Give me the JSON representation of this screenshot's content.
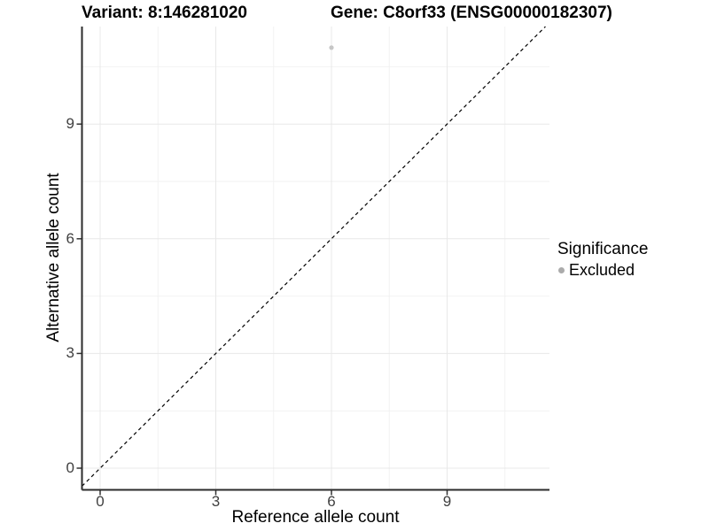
{
  "plot": {
    "left_title": "Variant: 8:146281020",
    "right_title": "Gene: C8orf33 (ENSG00000182307)",
    "x_axis_title": "Reference allele count",
    "y_axis_title": "Alternative allele count",
    "legend": {
      "title": "Significance",
      "items": [
        {
          "label": "Excluded",
          "color": "#ababab"
        }
      ]
    }
  },
  "chart_data": {
    "type": "scatter",
    "title": "Variant: 8:146281020 — Gene: C8orf33 (ENSG00000182307)",
    "xlabel": "Reference allele count",
    "ylabel": "Alternative allele count",
    "x_ticks": [
      0,
      3,
      6,
      9
    ],
    "y_ticks": [
      0,
      3,
      6,
      9
    ],
    "xlim": [
      -0.47,
      11.66
    ],
    "ylim": [
      -0.57,
      11.55
    ],
    "grid": "major and minor, light gray, on white panel",
    "legend_position": "right",
    "series": [
      {
        "name": "Excluded",
        "color": "#c6c6c6",
        "points": [
          {
            "x": 6,
            "y": 11
          }
        ]
      }
    ],
    "reference_line": {
      "type": "identity y=x",
      "style": "dashed",
      "color": "#000000"
    }
  }
}
